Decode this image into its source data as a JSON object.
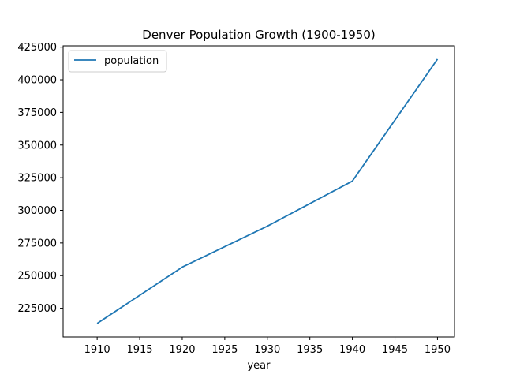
{
  "chart_data": {
    "type": "line",
    "title": "Denver Population Growth (1900-1950)",
    "xlabel": "year",
    "ylabel": "",
    "x": [
      1910,
      1920,
      1930,
      1940,
      1950
    ],
    "series": [
      {
        "name": "population",
        "values": [
          213381,
          256491,
          287861,
          322412,
          415786
        ],
        "color": "#1f77b4"
      }
    ],
    "xlim": [
      1906,
      1952
    ],
    "ylim": [
      203000,
      426000
    ],
    "xticks": [
      1910,
      1915,
      1920,
      1925,
      1930,
      1935,
      1940,
      1945,
      1950
    ],
    "yticks": [
      225000,
      250000,
      275000,
      300000,
      325000,
      350000,
      375000,
      400000,
      425000
    ],
    "grid": false,
    "legend_position": "top-left"
  }
}
